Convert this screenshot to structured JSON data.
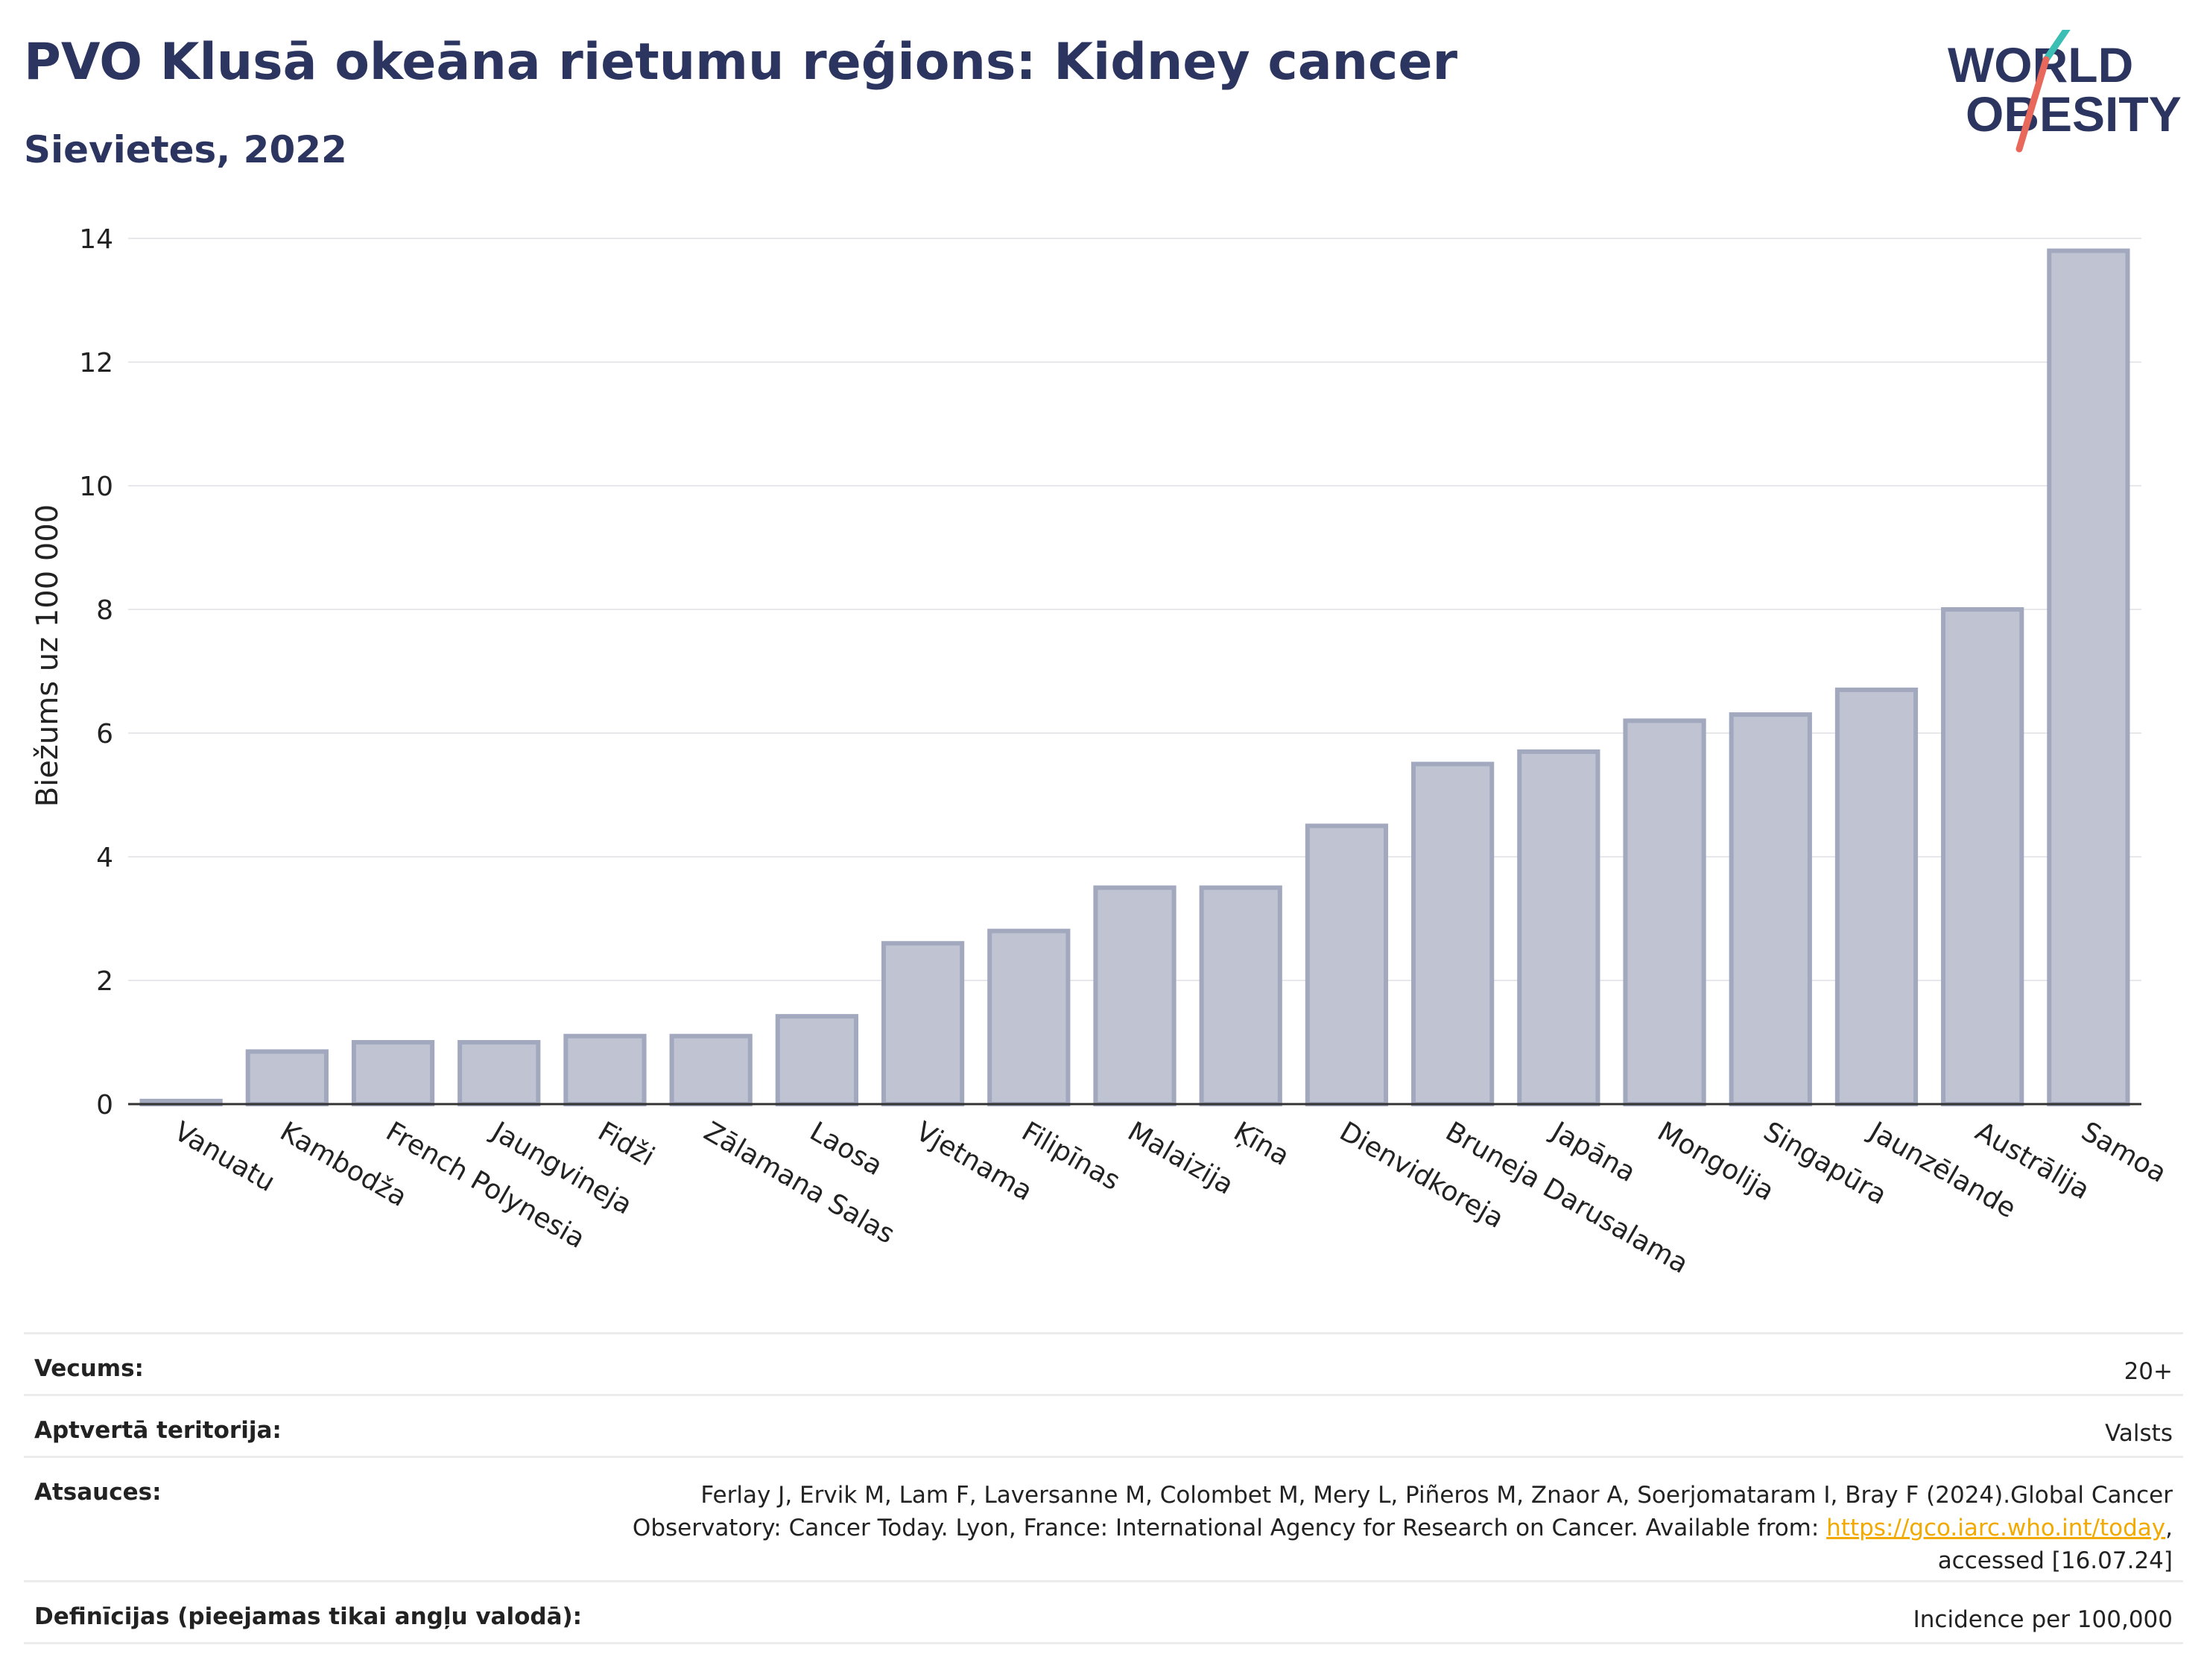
{
  "header": {
    "title": "PVO Klusā okeāna rietumu reģions: Kidney cancer",
    "subtitle": "Sievietes, 2022"
  },
  "logo": {
    "line1": "WORLD",
    "line2": "OBESITY",
    "name": "world-obesity-logo"
  },
  "colors": {
    "title": "#2b3560",
    "bar_fill": "#c0c4d2",
    "bar_stroke": "#a2a8be",
    "grid": "#e8e8ec",
    "axis": "#333333",
    "link": "#f2a900"
  },
  "chart_data": {
    "type": "bar",
    "ylabel": "Biežums uz 100 000",
    "ylim": [
      0,
      14
    ],
    "yticks": [
      0,
      2,
      4,
      6,
      8,
      10,
      12,
      14
    ],
    "grid": true,
    "categories": [
      "Vanuatu",
      "Kambodža",
      "French Polynesia",
      "Jaungvineja",
      "Fidži",
      "Zālamana Salas",
      "Laosa",
      "Vjetnama",
      "Filipīnas",
      "Malaizija",
      "Ķīna",
      "Dienvidkoreja",
      "Bruneja Darusalama",
      "Japāna",
      "Mongolija",
      "Singapūra",
      "Jaunzēlande",
      "Austrālija",
      "Samoa"
    ],
    "values": [
      0.05,
      0.85,
      1.0,
      1.0,
      1.1,
      1.1,
      1.42,
      2.6,
      2.8,
      3.5,
      3.5,
      4.5,
      5.5,
      5.7,
      6.2,
      6.3,
      6.7,
      8.0,
      13.8
    ]
  },
  "meta": {
    "age_label": "Vecums:",
    "age_value": "20+",
    "coverage_label": "Aptvertā teritorija:",
    "coverage_value": "Valsts",
    "refs_label": "Atsauces:",
    "refs_line1": "Ferlay J, Ervik M, Lam F, Laversanne M, Colombet M, Mery L, Piñeros M, Znaor A, Soerjomataram I, Bray F (2024).Global Cancer",
    "refs_line2": "Observatory: Cancer Today. Lyon, France: International Agency for Research on Cancer. Available from:",
    "refs_link": "https://gco.iarc.who.int/today",
    "refs_line3": "accessed [16.07.24]",
    "defs_label": "Definīcijas (pieejamas tikai angļu valodā):",
    "defs_value": "Incidence per 100,000"
  }
}
